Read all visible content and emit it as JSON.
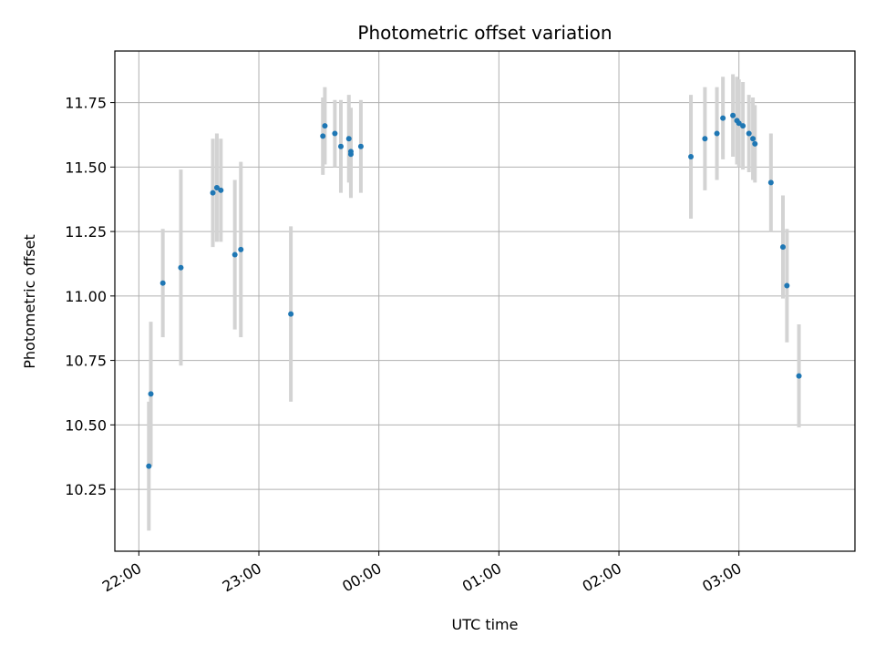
{
  "chart_data": {
    "type": "scatter",
    "title": "Photometric offset variation",
    "xlabel": "UTC time",
    "ylabel": "Photometric offset",
    "x_ticks": [
      "22:00",
      "23:00",
      "00:00",
      "01:00",
      "02:00",
      "03:00"
    ],
    "x_tick_values": [
      "22:00",
      "23:00",
      "24:00",
      "25:00",
      "26:00",
      "27:00"
    ],
    "xlim": [
      "21:48",
      "27:58"
    ],
    "y_ticks": [
      "10.25",
      "10.50",
      "10.75",
      "11.00",
      "11.25",
      "11.50",
      "11.75"
    ],
    "ylim": [
      10.01,
      11.95
    ],
    "grid": true,
    "colors": {
      "points": "#1f77b4",
      "errorbars": "#d3d3d3",
      "grid": "#b0b0b0"
    },
    "series": [
      {
        "points": [
          {
            "x": "22:05",
            "y": 10.34,
            "yerr": 0.25
          },
          {
            "x": "22:06",
            "y": 10.62,
            "yerr": 0.28
          },
          {
            "x": "22:12",
            "y": 11.05,
            "yerr": 0.21
          },
          {
            "x": "22:21",
            "y": 11.11,
            "yerr": 0.38
          },
          {
            "x": "22:37",
            "y": 11.4,
            "yerr": 0.21
          },
          {
            "x": "22:39",
            "y": 11.42,
            "yerr": 0.21
          },
          {
            "x": "22:41",
            "y": 11.41,
            "yerr": 0.2
          },
          {
            "x": "22:48",
            "y": 11.16,
            "yerr": 0.29
          },
          {
            "x": "22:51",
            "y": 11.18,
            "yerr": 0.34
          },
          {
            "x": "23:16",
            "y": 10.93,
            "yerr": 0.34
          },
          {
            "x": "23:32",
            "y": 11.62,
            "yerr": 0.15
          },
          {
            "x": "23:33",
            "y": 11.66,
            "yerr": 0.15
          },
          {
            "x": "23:38",
            "y": 11.63,
            "yerr": 0.13
          },
          {
            "x": "23:41",
            "y": 11.58,
            "yerr": 0.18
          },
          {
            "x": "23:45",
            "y": 11.61,
            "yerr": 0.17
          },
          {
            "x": "23:46",
            "y": 11.55,
            "yerr": 0.17
          },
          {
            "x": "23:46",
            "y": 11.56,
            "yerr": 0.17
          },
          {
            "x": "23:51",
            "y": 11.58,
            "yerr": 0.18
          },
          {
            "x": "26:36",
            "y": 11.54,
            "yerr": 0.24
          },
          {
            "x": "26:43",
            "y": 11.61,
            "yerr": 0.2
          },
          {
            "x": "26:49",
            "y": 11.63,
            "yerr": 0.18
          },
          {
            "x": "26:52",
            "y": 11.69,
            "yerr": 0.16
          },
          {
            "x": "26:57",
            "y": 11.7,
            "yerr": 0.16
          },
          {
            "x": "26:59",
            "y": 11.68,
            "yerr": 0.17
          },
          {
            "x": "27:00",
            "y": 11.67,
            "yerr": 0.17
          },
          {
            "x": "27:02",
            "y": 11.66,
            "yerr": 0.17
          },
          {
            "x": "27:05",
            "y": 11.63,
            "yerr": 0.15
          },
          {
            "x": "27:07",
            "y": 11.61,
            "yerr": 0.16
          },
          {
            "x": "27:08",
            "y": 11.59,
            "yerr": 0.15
          },
          {
            "x": "27:16",
            "y": 11.44,
            "yerr": 0.19
          },
          {
            "x": "27:22",
            "y": 11.19,
            "yerr": 0.2
          },
          {
            "x": "27:24",
            "y": 11.04,
            "yerr": 0.22
          },
          {
            "x": "27:30",
            "y": 10.69,
            "yerr": 0.2
          }
        ]
      }
    ]
  }
}
